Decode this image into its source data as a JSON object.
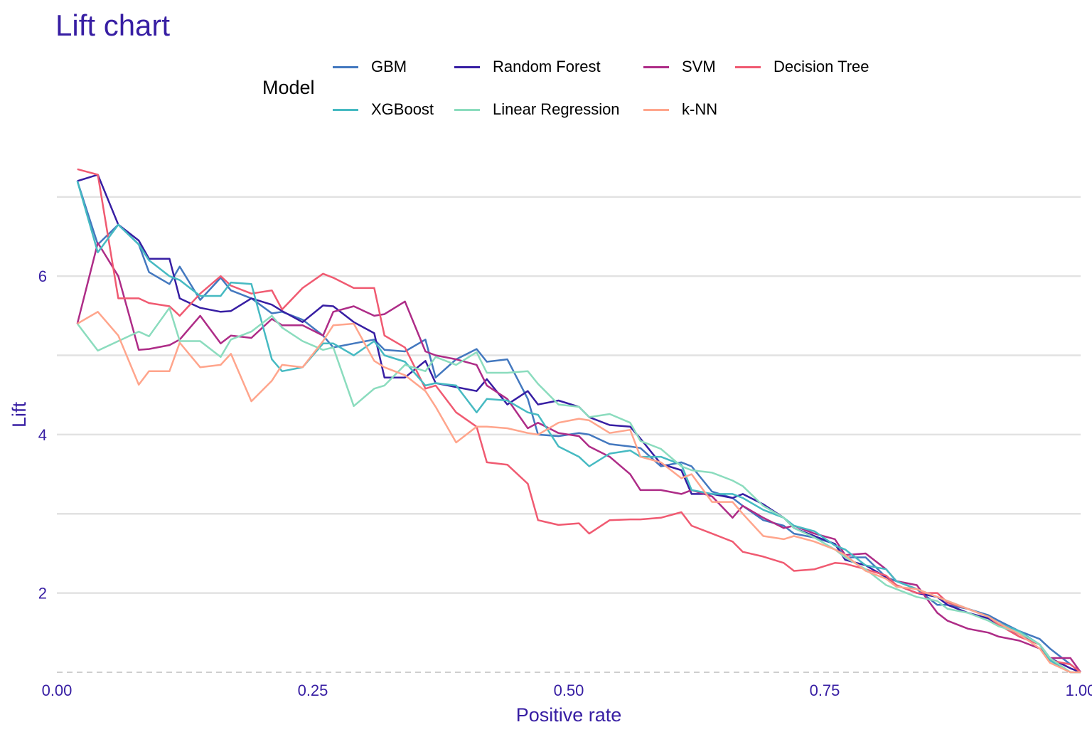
{
  "chart_data": {
    "type": "line",
    "title": "Lift chart",
    "xlabel": "Positive rate",
    "ylabel": "Lift",
    "xlim": [
      0,
      1
    ],
    "ylim": [
      1,
      7.6
    ],
    "x_ticks": [
      {
        "value": 0,
        "label": "0.00"
      },
      {
        "value": 0.25,
        "label": "0.25"
      },
      {
        "value": 0.5,
        "label": "0.50"
      },
      {
        "value": 0.75,
        "label": "0.75"
      },
      {
        "value": 1,
        "label": "1.00"
      }
    ],
    "y_ticks": [
      {
        "value": 2,
        "label": "2"
      },
      {
        "value": 4,
        "label": "4"
      },
      {
        "value": 6,
        "label": "6"
      }
    ],
    "y_gridlines": [
      2,
      3,
      4,
      5,
      6,
      7
    ],
    "baseline": 1,
    "legend": {
      "title": "Model",
      "placement": "top"
    },
    "x": [
      0.02,
      0.04,
      0.06,
      0.08,
      0.09,
      0.11,
      0.12,
      0.14,
      0.16,
      0.17,
      0.19,
      0.21,
      0.22,
      0.24,
      0.26,
      0.27,
      0.29,
      0.31,
      0.32,
      0.34,
      0.36,
      0.37,
      0.39,
      0.41,
      0.42,
      0.44,
      0.46,
      0.47,
      0.49,
      0.51,
      0.52,
      0.54,
      0.56,
      0.57,
      0.59,
      0.61,
      0.62,
      0.64,
      0.66,
      0.67,
      0.69,
      0.71,
      0.72,
      0.74,
      0.76,
      0.77,
      0.79,
      0.81,
      0.82,
      0.84,
      0.86,
      0.87,
      0.89,
      0.91,
      0.92,
      0.94,
      0.96,
      0.97,
      0.99,
      1.0
    ],
    "series": [
      {
        "name": "GBM",
        "color": "#4378bf",
        "values": [
          7.2,
          6.4,
          6.65,
          6.4,
          6.05,
          5.9,
          6.12,
          5.7,
          5.98,
          5.82,
          5.72,
          5.53,
          5.55,
          5.45,
          5.25,
          5.1,
          5.15,
          5.2,
          5.07,
          5.05,
          5.2,
          4.72,
          4.95,
          5.08,
          4.92,
          4.95,
          4.45,
          4.0,
          3.98,
          4.02,
          4.0,
          3.88,
          3.85,
          3.83,
          3.6,
          3.65,
          3.6,
          3.28,
          3.2,
          3.1,
          2.92,
          2.85,
          2.75,
          2.7,
          2.62,
          2.45,
          2.45,
          2.2,
          2.15,
          2.05,
          1.85,
          1.85,
          1.8,
          1.72,
          1.65,
          1.52,
          1.42,
          1.3,
          1.1,
          1.0
        ]
      },
      {
        "name": "Random Forest",
        "color": "#371ea3",
        "values": [
          7.2,
          7.28,
          6.65,
          6.45,
          6.22,
          6.22,
          5.72,
          5.6,
          5.55,
          5.56,
          5.72,
          5.64,
          5.56,
          5.42,
          5.63,
          5.62,
          5.42,
          5.28,
          4.72,
          4.72,
          4.93,
          4.65,
          4.6,
          4.55,
          4.7,
          4.38,
          4.55,
          4.38,
          4.43,
          4.35,
          4.22,
          4.12,
          4.1,
          3.95,
          3.63,
          3.55,
          3.25,
          3.25,
          3.2,
          3.25,
          3.12,
          2.95,
          2.82,
          2.72,
          2.62,
          2.42,
          2.35,
          2.2,
          2.1,
          2.0,
          1.95,
          1.85,
          1.75,
          1.68,
          1.6,
          1.48,
          1.35,
          1.18,
          1.05,
          1.0
        ]
      },
      {
        "name": "SVM",
        "color": "#ae2c87",
        "values": [
          5.4,
          6.42,
          6.0,
          5.07,
          5.08,
          5.13,
          5.2,
          5.5,
          5.15,
          5.25,
          5.22,
          5.46,
          5.38,
          5.38,
          5.25,
          5.55,
          5.62,
          5.5,
          5.52,
          5.68,
          5.05,
          5.0,
          4.95,
          4.88,
          4.62,
          4.45,
          4.08,
          4.15,
          4.02,
          3.98,
          3.85,
          3.72,
          3.5,
          3.3,
          3.3,
          3.25,
          3.3,
          3.22,
          2.95,
          3.1,
          2.95,
          2.82,
          2.85,
          2.75,
          2.68,
          2.48,
          2.5,
          2.3,
          2.15,
          2.1,
          1.75,
          1.65,
          1.55,
          1.5,
          1.45,
          1.4,
          1.3,
          1.18,
          1.18,
          1.0
        ]
      },
      {
        "name": "Decision Tree",
        "color": "#f05a71",
        "values": [
          7.35,
          7.28,
          5.72,
          5.72,
          5.66,
          5.62,
          5.5,
          5.78,
          6.0,
          5.88,
          5.78,
          5.82,
          5.58,
          5.85,
          6.03,
          5.98,
          5.85,
          5.85,
          5.25,
          5.1,
          4.58,
          4.62,
          4.28,
          4.1,
          3.65,
          3.62,
          3.38,
          2.92,
          2.86,
          2.88,
          2.75,
          2.92,
          2.93,
          2.93,
          2.95,
          3.02,
          2.85,
          2.75,
          2.65,
          2.52,
          2.46,
          2.38,
          2.28,
          2.3,
          2.38,
          2.37,
          2.3,
          2.22,
          2.1,
          2.0,
          2.0,
          1.88,
          1.8,
          1.7,
          1.6,
          1.45,
          1.35,
          1.15,
          1.1,
          1.0
        ]
      },
      {
        "name": "XGBoost",
        "color": "#46bac2",
        "values": [
          7.2,
          6.3,
          6.65,
          6.4,
          6.2,
          6.0,
          5.95,
          5.75,
          5.75,
          5.92,
          5.9,
          4.95,
          4.8,
          4.85,
          5.15,
          5.15,
          5.0,
          5.18,
          5.0,
          4.92,
          4.62,
          4.65,
          4.62,
          4.28,
          4.45,
          4.43,
          4.28,
          4.25,
          3.85,
          3.72,
          3.6,
          3.76,
          3.8,
          3.72,
          3.72,
          3.62,
          3.3,
          3.25,
          3.25,
          3.2,
          3.05,
          2.95,
          2.85,
          2.78,
          2.6,
          2.55,
          2.35,
          2.3,
          2.15,
          2.05,
          1.95,
          1.9,
          1.8,
          1.7,
          1.62,
          1.52,
          1.35,
          1.15,
          1.0,
          1.0
        ]
      },
      {
        "name": "Linear Regression",
        "color": "#8bdcbe",
        "values": [
          5.4,
          5.06,
          5.18,
          5.3,
          5.24,
          5.6,
          5.18,
          5.18,
          4.98,
          5.2,
          5.3,
          5.5,
          5.35,
          5.18,
          5.07,
          5.1,
          4.36,
          4.58,
          4.62,
          4.88,
          4.8,
          4.98,
          4.88,
          5.04,
          4.78,
          4.78,
          4.8,
          4.64,
          4.38,
          4.35,
          4.22,
          4.26,
          4.15,
          3.92,
          3.82,
          3.6,
          3.55,
          3.52,
          3.42,
          3.35,
          3.1,
          2.95,
          2.82,
          2.7,
          2.55,
          2.45,
          2.3,
          2.1,
          2.05,
          1.95,
          1.9,
          1.8,
          1.75,
          1.65,
          1.58,
          1.5,
          1.35,
          1.18,
          1.0,
          1.0
        ]
      },
      {
        "name": "k-NN",
        "color": "#ffa58c",
        "values": [
          5.4,
          5.55,
          5.25,
          4.63,
          4.8,
          4.8,
          5.16,
          4.85,
          4.88,
          5.02,
          4.42,
          4.68,
          4.88,
          4.85,
          5.18,
          5.38,
          5.4,
          4.93,
          4.85,
          4.75,
          4.55,
          4.35,
          3.9,
          4.1,
          4.1,
          4.08,
          4.02,
          4.0,
          4.15,
          4.2,
          4.18,
          4.02,
          4.06,
          3.72,
          3.65,
          3.45,
          3.5,
          3.15,
          3.15,
          3.0,
          2.72,
          2.68,
          2.72,
          2.65,
          2.55,
          2.48,
          2.28,
          2.18,
          2.08,
          2.05,
          1.95,
          1.9,
          1.8,
          1.7,
          1.62,
          1.48,
          1.3,
          1.12,
          1.0,
          1.0
        ]
      }
    ]
  }
}
